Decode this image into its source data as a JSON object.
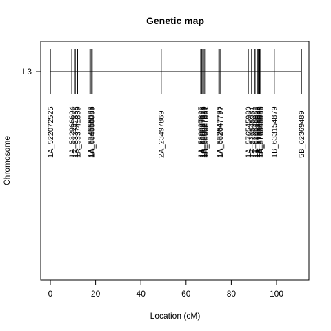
{
  "chart_data": {
    "type": "genetic-map",
    "title": "Genetic map",
    "xlabel": "Location (cM)",
    "ylabel": "Chromosome",
    "xlim": [
      0,
      112
    ],
    "x_ticks": [
      0,
      20,
      40,
      60,
      80,
      100
    ],
    "linkage_group": "L3",
    "grid": false,
    "markers": [
      {
        "name": "1A_522072525",
        "x": 0.0
      },
      {
        "name": "1A_532966604",
        "x": 9.5
      },
      {
        "name": "1A_533741858",
        "x": 11.0
      },
      {
        "name": "1A_533741859",
        "x": 12.0
      },
      {
        "name": "1A_534556087",
        "x": 17.5
      },
      {
        "name": "1A_534556088",
        "x": 18.0
      },
      {
        "name": "1A_534556089",
        "x": 18.5
      },
      {
        "name": "2A_23497869",
        "x": 49.0
      },
      {
        "name": "1A_580027827",
        "x": 66.5
      },
      {
        "name": "1A_580027828",
        "x": 67.0
      },
      {
        "name": "1A_580027829",
        "x": 67.5
      },
      {
        "name": "1A_580027830",
        "x": 68.0
      },
      {
        "name": "1A_580027831",
        "x": 68.5
      },
      {
        "name": "1A_582647795",
        "x": 74.5
      },
      {
        "name": "1A_582647797",
        "x": 75.0
      },
      {
        "name": "1A_576545980",
        "x": 87.5
      },
      {
        "name": "1A_576545981",
        "x": 89.0
      },
      {
        "name": "1A_576545982",
        "x": 90.5
      },
      {
        "name": "1A_576545983",
        "x": 91.5
      },
      {
        "name": "1A_576545984",
        "x": 92.0
      },
      {
        "name": "1A_576545985",
        "x": 92.5
      },
      {
        "name": "1A_576545986",
        "x": 93.0
      },
      {
        "name": "1B_633154879",
        "x": 99.0
      },
      {
        "name": "5B_62369489",
        "x": 111.0
      }
    ]
  }
}
